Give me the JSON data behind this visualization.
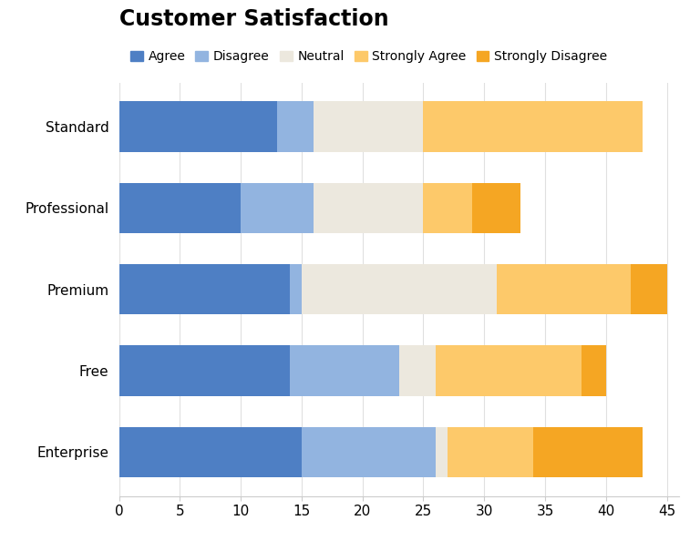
{
  "title": "Customer Satisfaction",
  "categories": [
    "Standard",
    "Professional",
    "Premium",
    "Free",
    "Enterprise"
  ],
  "series_order": [
    "Agree",
    "Disagree",
    "Neutral",
    "Strongly Agree",
    "Strongly Disagree"
  ],
  "series": {
    "Agree": [
      13,
      10,
      14,
      14,
      15
    ],
    "Disagree": [
      3,
      6,
      1,
      9,
      11
    ],
    "Neutral": [
      9,
      9,
      16,
      3,
      1
    ],
    "Strongly Agree": [
      18,
      4,
      11,
      12,
      7
    ],
    "Strongly Disagree": [
      0,
      4,
      3,
      2,
      9
    ]
  },
  "colors": {
    "Agree": "#4e7fc4",
    "Disagree": "#92b4e0",
    "Neutral": "#ece8de",
    "Strongly Agree": "#fdc96a",
    "Strongly Disagree": "#f5a623"
  },
  "xlim": [
    0,
    46
  ],
  "xticks": [
    0,
    5,
    10,
    15,
    20,
    25,
    30,
    35,
    40,
    45
  ],
  "background_color": "#ffffff",
  "title_fontsize": 17,
  "legend_fontsize": 10,
  "tick_fontsize": 11,
  "bar_height": 0.62
}
